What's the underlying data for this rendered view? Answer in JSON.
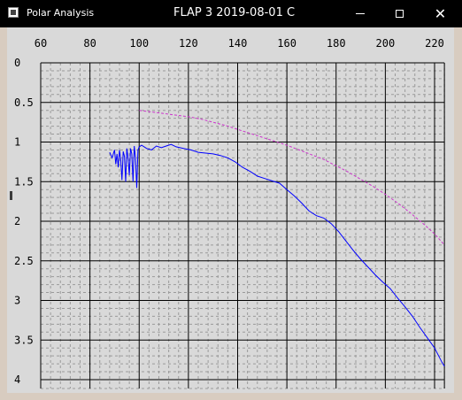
{
  "window": {
    "app_title": "Polar Analysis",
    "doc_title": "FLAP 3 2019-08-01 C",
    "minimize_symbol": "",
    "maximize_symbol": "",
    "close_symbol": "✕"
  },
  "colors": {
    "titlebar": "#000000",
    "plot_background": "#d9d9d9",
    "grid_major": "#000000",
    "grid_minor": "#9a9a9a",
    "series_measured": "#0000ff",
    "series_reference": "#cc33cc"
  },
  "chart_data": {
    "type": "line",
    "title": "",
    "xlabel": "",
    "ylabel": "",
    "xlim": [
      60,
      220
    ],
    "ylim": [
      0,
      4
    ],
    "y_inverted": true,
    "x_axis_position": "top",
    "grid": true,
    "x_ticks": [
      "60",
      "80",
      "100",
      "120",
      "140",
      "160",
      "180",
      "200",
      "220"
    ],
    "y_ticks": [
      "0",
      "0.5",
      "1",
      "1.5",
      "2",
      "2.5",
      "3",
      "3.5",
      "4"
    ],
    "series": [
      {
        "color": "#0000ff",
        "style": "solid",
        "points": [
          [
            88,
            1.13
          ],
          [
            89,
            1.2
          ],
          [
            90,
            1.1
          ],
          [
            90.5,
            1.28
          ],
          [
            91,
            1.15
          ],
          [
            91.5,
            1.32
          ],
          [
            92,
            1.1
          ],
          [
            92.5,
            1.22
          ],
          [
            93,
            1.48
          ],
          [
            93.5,
            1.12
          ],
          [
            94,
            1.18
          ],
          [
            94.5,
            1.5
          ],
          [
            95,
            1.08
          ],
          [
            95.5,
            1.2
          ],
          [
            96,
            1.42
          ],
          [
            96.5,
            1.08
          ],
          [
            97,
            1.15
          ],
          [
            97.5,
            1.5
          ],
          [
            98,
            1.05
          ],
          [
            98.5,
            1.2
          ],
          [
            99,
            1.58
          ],
          [
            99.5,
            1.1
          ],
          [
            100,
            1.06
          ],
          [
            101,
            1.04
          ],
          [
            103,
            1.08
          ],
          [
            105,
            1.1
          ],
          [
            107,
            1.05
          ],
          [
            109,
            1.07
          ],
          [
            111,
            1.05
          ],
          [
            113,
            1.03
          ],
          [
            115,
            1.06
          ],
          [
            118,
            1.08
          ],
          [
            121,
            1.1
          ],
          [
            124,
            1.13
          ],
          [
            127,
            1.14
          ],
          [
            130,
            1.15
          ],
          [
            133,
            1.17
          ],
          [
            136,
            1.2
          ],
          [
            139,
            1.25
          ],
          [
            142,
            1.32
          ],
          [
            145,
            1.37
          ],
          [
            148,
            1.43
          ],
          [
            151,
            1.46
          ],
          [
            154,
            1.49
          ],
          [
            157,
            1.52
          ],
          [
            160,
            1.6
          ],
          [
            163,
            1.68
          ],
          [
            166,
            1.77
          ],
          [
            169,
            1.87
          ],
          [
            172,
            1.93
          ],
          [
            175,
            1.96
          ],
          [
            178,
            2.03
          ],
          [
            181,
            2.13
          ],
          [
            184,
            2.25
          ],
          [
            187,
            2.37
          ],
          [
            190,
            2.48
          ],
          [
            193,
            2.58
          ],
          [
            196,
            2.68
          ],
          [
            199,
            2.77
          ],
          [
            202,
            2.85
          ],
          [
            205,
            2.97
          ],
          [
            208,
            3.08
          ],
          [
            211,
            3.2
          ],
          [
            214,
            3.34
          ],
          [
            217,
            3.47
          ],
          [
            220,
            3.6
          ],
          [
            223,
            3.78
          ],
          [
            224,
            3.83
          ]
        ]
      },
      {
        "color": "#cc33cc",
        "style": "dashed",
        "points": [
          [
            100,
            0.6
          ],
          [
            105,
            0.62
          ],
          [
            110,
            0.64
          ],
          [
            115,
            0.66
          ],
          [
            120,
            0.68
          ],
          [
            125,
            0.71
          ],
          [
            130,
            0.75
          ],
          [
            135,
            0.79
          ],
          [
            140,
            0.84
          ],
          [
            145,
            0.89
          ],
          [
            150,
            0.94
          ],
          [
            155,
            0.99
          ],
          [
            160,
            1.04
          ],
          [
            165,
            1.1
          ],
          [
            170,
            1.16
          ],
          [
            175,
            1.22
          ],
          [
            180,
            1.3
          ],
          [
            185,
            1.38
          ],
          [
            190,
            1.47
          ],
          [
            195,
            1.56
          ],
          [
            200,
            1.66
          ],
          [
            205,
            1.77
          ],
          [
            210,
            1.89
          ],
          [
            215,
            2.02
          ],
          [
            220,
            2.16
          ],
          [
            224,
            2.3
          ]
        ]
      }
    ]
  }
}
